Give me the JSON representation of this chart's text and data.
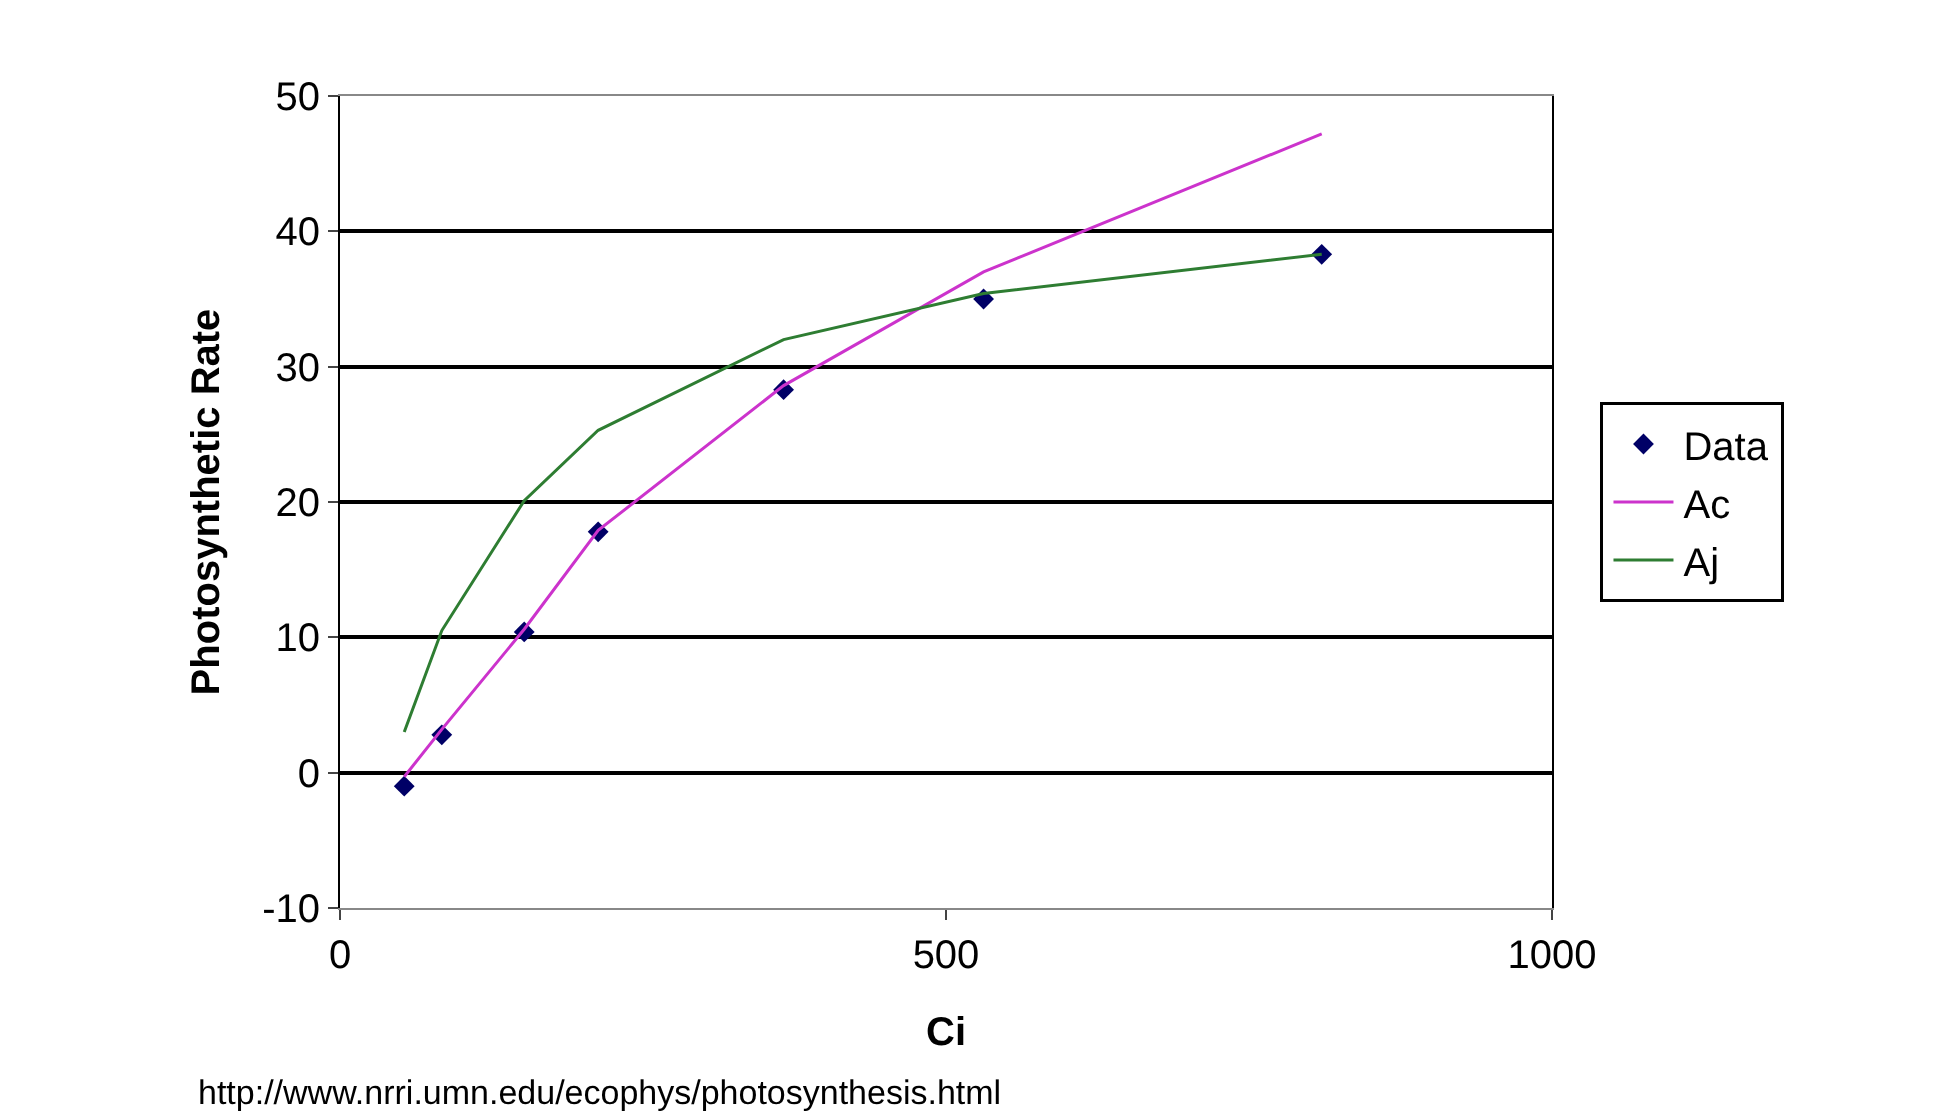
{
  "chart_data": {
    "type": "line",
    "xlabel": "Ci",
    "ylabel": "Photosynthetic Rate",
    "x": [
      53,
      84,
      152,
      213,
      366,
      531,
      810
    ],
    "series": [
      {
        "name": "Data",
        "type": "scatter",
        "marker": "diamond",
        "color": "#000066",
        "values": [
          -1.0,
          2.8,
          10.4,
          17.8,
          28.3,
          35.0,
          38.3
        ]
      },
      {
        "name": "Ac",
        "marker": "none",
        "color": "#cc33cc",
        "values": [
          -0.3,
          3.2,
          10.6,
          17.9,
          28.6,
          37.0,
          47.2
        ]
      },
      {
        "name": "Aj",
        "marker": "none",
        "color": "#2e7d32",
        "values": [
          3.0,
          10.5,
          20.1,
          25.3,
          32.0,
          35.4,
          38.3
        ]
      }
    ],
    "xlim": [
      0,
      1000
    ],
    "xticks": [
      0,
      500,
      1000
    ],
    "ylim": [
      -10,
      50
    ],
    "yticks": [
      -10,
      0,
      10,
      20,
      30,
      40,
      50
    ],
    "grid": "y",
    "legend": "right",
    "line_style": "solid",
    "annotations": [
      "http://www.nrri.umn.edu/ecophys/photosynthesis.html"
    ]
  }
}
